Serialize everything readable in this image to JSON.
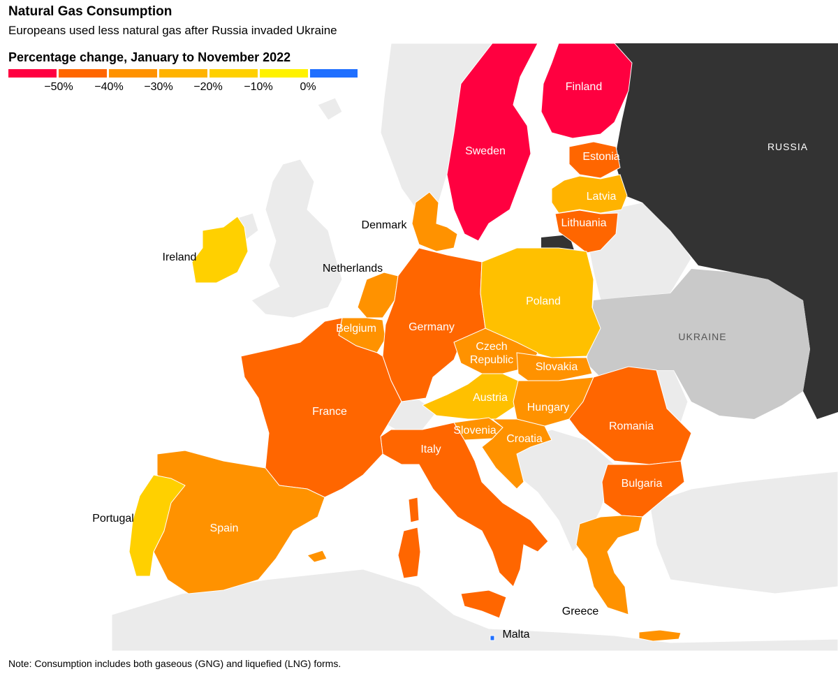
{
  "header": {
    "title": "Natural Gas Consumption",
    "subtitle": "Europeans used less natural gas after Russia invaded Ukraine"
  },
  "legend": {
    "title": "Percentage change, January to November 2022",
    "bins": [
      {
        "color": "#ff0040"
      },
      {
        "color": "#ff6600"
      },
      {
        "color": "#ff9200"
      },
      {
        "color": "#ffb300"
      },
      {
        "color": "#ffd000"
      },
      {
        "color": "#fff200"
      },
      {
        "color": "#1f6fff"
      }
    ],
    "ticks": [
      "−50%",
      "−40%",
      "−30%",
      "−20%",
      "−10%",
      "0%"
    ]
  },
  "colors": {
    "sea": "#ffffff",
    "non_eu_land": "#ebebeb",
    "ukraine": "#c9c9c9",
    "russia": "#333333",
    "label_dark": "#000000",
    "label_light": "#ffffff"
  },
  "countries": {
    "sweden": "Sweden",
    "finland": "Finland",
    "estonia": "Estonia",
    "latvia": "Latvia",
    "lithuania": "Lithuania",
    "denmark": "Denmark",
    "netherlands": "Netherlands",
    "belgium": "Belgium",
    "germany": "Germany",
    "poland": "Poland",
    "czech_line1": "Czech",
    "czech_line2": "Republic",
    "slovakia": "Slovakia",
    "austria": "Austria",
    "hungary": "Hungary",
    "slovenia": "Slovenia",
    "croatia": "Croatia",
    "romania": "Romania",
    "bulgaria": "Bulgaria",
    "italy": "Italy",
    "france": "France",
    "spain": "Spain",
    "portugal": "Portugal",
    "ireland": "Ireland",
    "greece": "Greece",
    "malta": "Malta",
    "russia": "RUSSIA",
    "ukraine": "UKRAINE"
  },
  "note": "Note: Consumption includes both gaseous (GNG) and liquefied (LNG) forms."
}
